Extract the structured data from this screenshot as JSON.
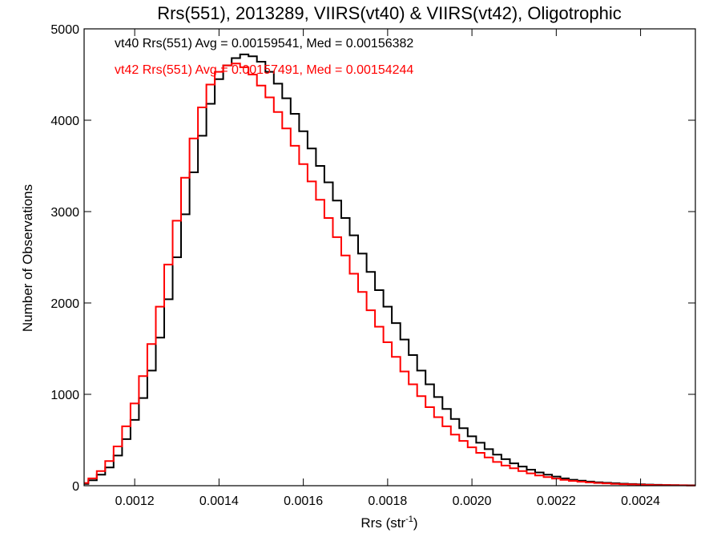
{
  "chart_data": {
    "type": "line",
    "title": "Rrs(551), 2013289, VIIRS(vt40) & VIIRS(vt42), Oligotrophic",
    "xlabel": "Rrs (str",
    "xlabel_sup": "-1",
    "xlabel_end": ")",
    "ylabel": "Number of Observations",
    "xlim": [
      0.00108,
      0.00253
    ],
    "ylim": [
      0,
      5000
    ],
    "xticks": [
      0.0012,
      0.0014,
      0.0016,
      0.0018,
      0.002,
      0.0022,
      0.0024
    ],
    "xtick_labels": [
      "0.0012",
      "0.0014",
      "0.0016",
      "0.0018",
      "0.0020",
      "0.0022",
      "0.0024"
    ],
    "yticks": [
      0,
      1000,
      2000,
      3000,
      4000,
      5000
    ],
    "ytick_labels": [
      "0",
      "1000",
      "2000",
      "3000",
      "4000",
      "5000"
    ],
    "annotations": [
      {
        "text": "vt40 Rrs(551) Avg = 0.00159541, Med = 0.00156382",
        "color": "#000000"
      },
      {
        "text": "vt42 Rrs(551) Avg = 0.00157491, Med = 0.00154244",
        "color": "#ff0000"
      }
    ],
    "series": [
      {
        "name": "vt40",
        "color": "#000000",
        "x": [
          0.00108,
          0.0011,
          0.00112,
          0.00114,
          0.00116,
          0.00118,
          0.0012,
          0.00122,
          0.00124,
          0.00126,
          0.00128,
          0.0013,
          0.00132,
          0.00134,
          0.00136,
          0.00138,
          0.0014,
          0.00142,
          0.00144,
          0.00146,
          0.00148,
          0.0015,
          0.00152,
          0.00154,
          0.00156,
          0.00158,
          0.0016,
          0.00162,
          0.00164,
          0.00166,
          0.00168,
          0.0017,
          0.00172,
          0.00174,
          0.00176,
          0.00178,
          0.0018,
          0.00182,
          0.00184,
          0.00186,
          0.00188,
          0.0019,
          0.00192,
          0.00194,
          0.00196,
          0.00198,
          0.002,
          0.00202,
          0.00204,
          0.00206,
          0.00208,
          0.0021,
          0.00212,
          0.00214,
          0.00216,
          0.00218,
          0.0022,
          0.00222,
          0.00224,
          0.00226,
          0.00228,
          0.0023,
          0.00232,
          0.00234,
          0.00236,
          0.00238,
          0.0024,
          0.00242,
          0.00244,
          0.00246,
          0.00248,
          0.0025,
          0.00252
        ],
        "values": [
          20,
          60,
          120,
          200,
          330,
          510,
          720,
          960,
          1260,
          1620,
          2040,
          2500,
          2970,
          3430,
          3830,
          4180,
          4450,
          4600,
          4680,
          4720,
          4700,
          4640,
          4530,
          4400,
          4240,
          4070,
          3880,
          3690,
          3500,
          3320,
          3120,
          2930,
          2740,
          2540,
          2340,
          2140,
          1960,
          1780,
          1600,
          1430,
          1260,
          1110,
          970,
          840,
          730,
          630,
          540,
          470,
          400,
          340,
          290,
          245,
          210,
          175,
          145,
          120,
          100,
          80,
          65,
          55,
          45,
          38,
          32,
          27,
          22,
          18,
          15,
          12,
          10,
          8,
          6,
          5,
          4
        ]
      },
      {
        "name": "vt42",
        "color": "#ff0000",
        "x": [
          0.00108,
          0.0011,
          0.00112,
          0.00114,
          0.00116,
          0.00118,
          0.0012,
          0.00122,
          0.00124,
          0.00126,
          0.00128,
          0.0013,
          0.00132,
          0.00134,
          0.00136,
          0.00138,
          0.0014,
          0.00142,
          0.00144,
          0.00146,
          0.00148,
          0.0015,
          0.00152,
          0.00154,
          0.00156,
          0.00158,
          0.0016,
          0.00162,
          0.00164,
          0.00166,
          0.00168,
          0.0017,
          0.00172,
          0.00174,
          0.00176,
          0.00178,
          0.0018,
          0.00182,
          0.00184,
          0.00186,
          0.00188,
          0.0019,
          0.00192,
          0.00194,
          0.00196,
          0.00198,
          0.002,
          0.00202,
          0.00204,
          0.00206,
          0.00208,
          0.0021,
          0.00212,
          0.00214,
          0.00216,
          0.00218,
          0.0022,
          0.00222,
          0.00224,
          0.00226,
          0.00228,
          0.0023,
          0.00232,
          0.00234,
          0.00236,
          0.00238,
          0.0024,
          0.00242,
          0.00244,
          0.00246,
          0.00248,
          0.0025,
          0.00252
        ],
        "values": [
          30,
          80,
          160,
          270,
          430,
          650,
          900,
          1200,
          1550,
          1960,
          2420,
          2900,
          3370,
          3800,
          4140,
          4390,
          4530,
          4600,
          4620,
          4580,
          4500,
          4380,
          4250,
          4090,
          3910,
          3720,
          3520,
          3330,
          3130,
          2930,
          2720,
          2520,
          2320,
          2120,
          1920,
          1740,
          1570,
          1410,
          1250,
          1110,
          980,
          860,
          750,
          650,
          560,
          490,
          420,
          360,
          310,
          260,
          220,
          190,
          160,
          135,
          112,
          95,
          78,
          64,
          53,
          44,
          36,
          30,
          25,
          20,
          17,
          14,
          11,
          9,
          7,
          6,
          5,
          4,
          3
        ]
      }
    ]
  }
}
